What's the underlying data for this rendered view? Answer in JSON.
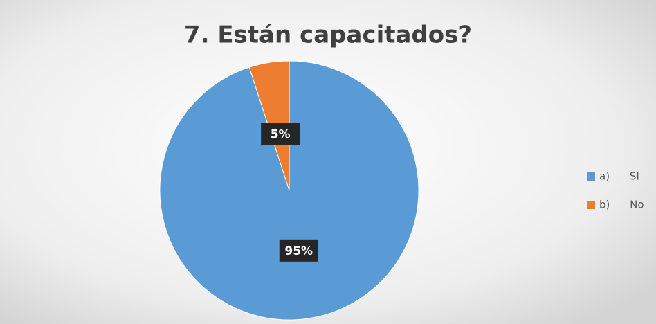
{
  "chart_data": {
    "type": "pie",
    "title": "7. Están capacitados?",
    "categories": [
      "a) SI",
      "b) No"
    ],
    "values": [
      95,
      5
    ],
    "value_labels": [
      "95%",
      "5%"
    ],
    "colors": [
      "#5b9bd5",
      "#ed7d31"
    ],
    "legend": "right"
  }
}
